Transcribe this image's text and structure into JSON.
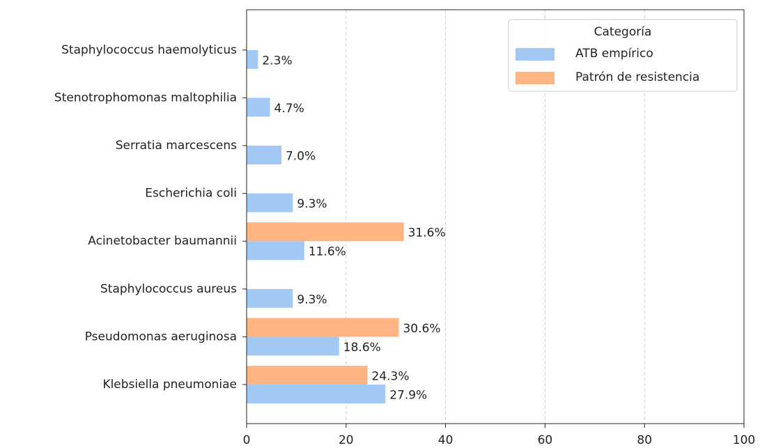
{
  "chart_data": {
    "type": "barh",
    "categories": [
      "Klebsiella pneumoniae",
      "Pseudomonas aeruginosa",
      "Staphylococcus aureus",
      "Acinetobacter baumannii",
      "Escherichia coli",
      "Serratia marcescens",
      "Stenotrophomonas maltophilia",
      "Staphylococcus haemolyticus"
    ],
    "series": [
      {
        "name": "ATB empírico",
        "color": "#a1c9f4",
        "values": [
          27.9,
          18.6,
          9.3,
          11.6,
          9.3,
          7.0,
          4.7,
          2.3
        ],
        "value_labels": [
          "27.9%",
          "18.6%",
          "9.3%",
          "11.6%",
          "9.3%",
          "7.0%",
          "4.7%",
          "2.3%"
        ]
      },
      {
        "name": "Patrón de resistencia",
        "color": "#ffb482",
        "values": [
          24.3,
          30.6,
          null,
          31.6,
          null,
          null,
          null,
          null
        ],
        "value_labels": [
          "24.3%",
          "30.6%",
          null,
          "31.6%",
          null,
          null,
          null,
          null
        ]
      }
    ],
    "xlim": [
      0,
      100
    ],
    "xticks": [
      0,
      20,
      40,
      60,
      80,
      100
    ],
    "grid": true,
    "legend": {
      "title": "Categoría",
      "position": "upper right"
    }
  }
}
